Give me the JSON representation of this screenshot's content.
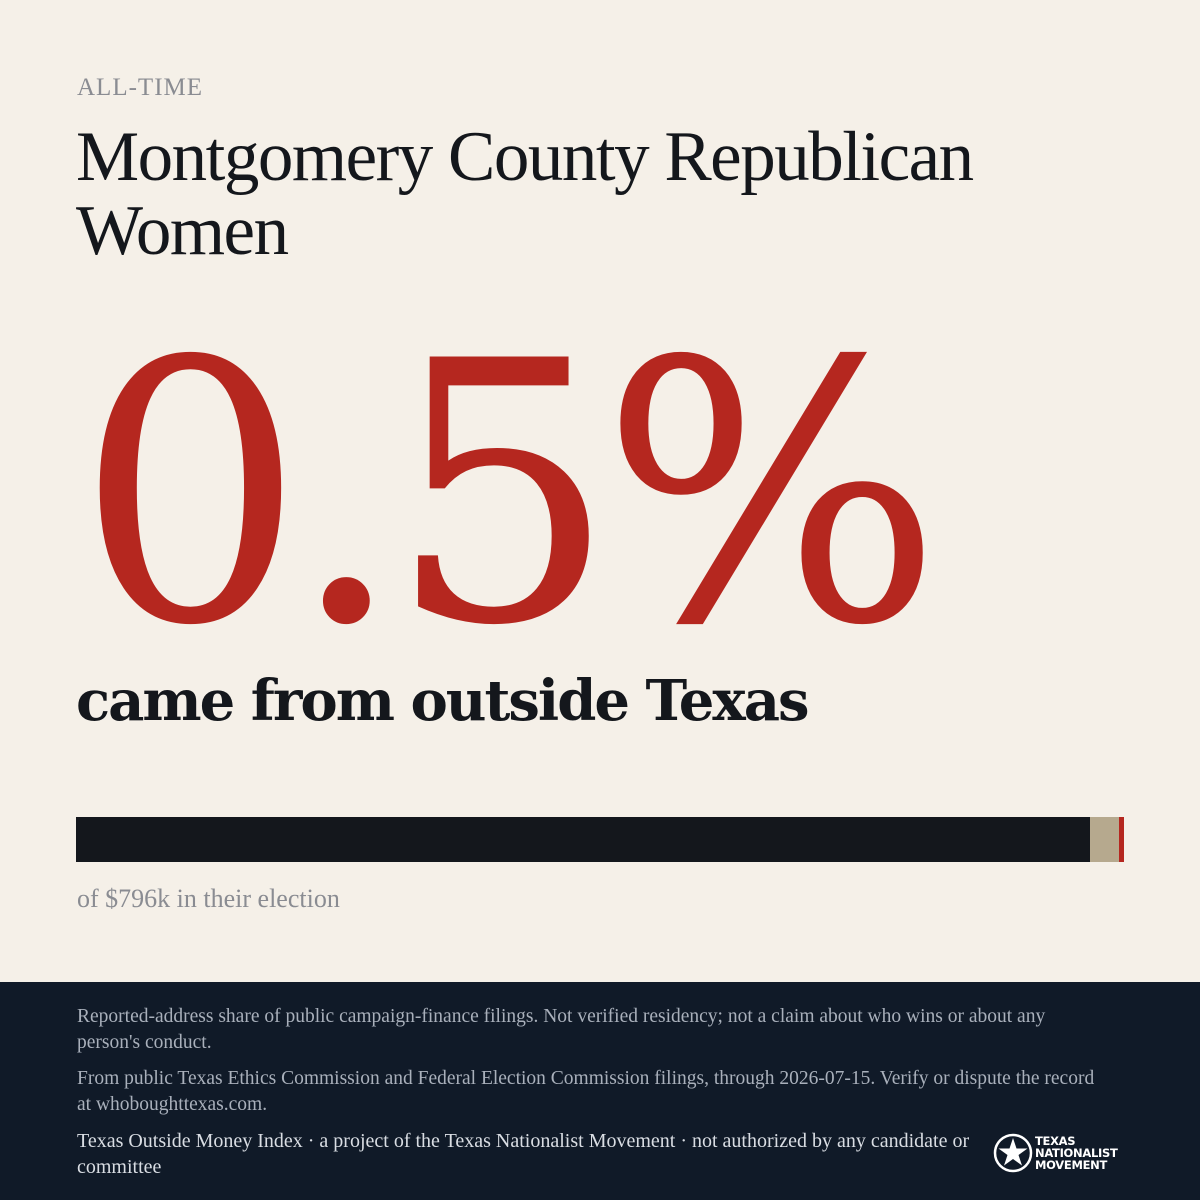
{
  "header": {
    "eyebrow": "ALL-TIME",
    "title": "Montgomery County Republican Women"
  },
  "headline": {
    "percent_text": "0.5%",
    "subtitle": "came from outside Texas"
  },
  "share_bar": {
    "texas_fraction": 0.9675,
    "unknown_fraction": 0.0275,
    "outside_fraction": 0.005,
    "colors": {
      "texas": "#14171c",
      "unknown": "#b6a98e",
      "outside": "#b5271f"
    }
  },
  "caption": "of $796k in their election",
  "footer": {
    "disclaimer": "Reported-address share of public campaign-finance filings. Not verified residency; not a claim about who wins or about any person's conduct.",
    "source": "From public Texas Ethics Commission and Federal Election Commission filings, through 2026-07-15. Verify or dispute the record at whoboughttexas.com.",
    "credit": "Texas Outside Money Index · a project of the Texas Nationalist Movement · not authorized by any candidate or committee",
    "logo_lines": [
      "TEXAS",
      "NATIONALIST",
      "MOVEMENT"
    ]
  },
  "colors": {
    "background": "#f5f0e8",
    "accent": "#b5271f",
    "ink": "#14171c",
    "footer": "#101a28"
  }
}
